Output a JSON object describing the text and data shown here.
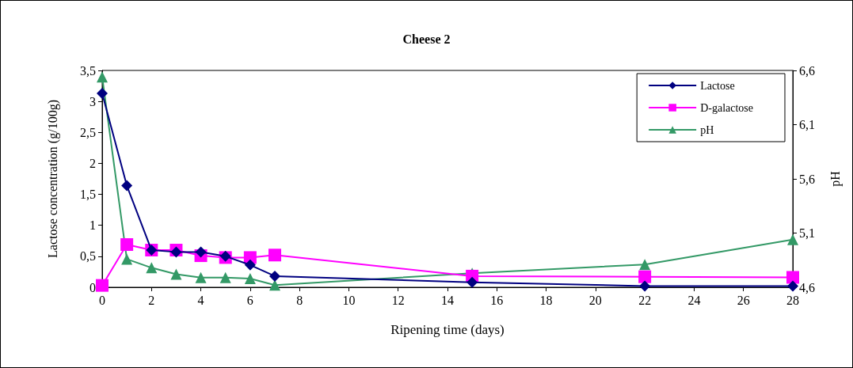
{
  "chart_data": {
    "type": "line",
    "title": "Cheese 2",
    "xlabel": "Ripening time (days)",
    "ylabel": "Lactose concentration (g/100g)",
    "y2label": "pH",
    "x": [
      0,
      1,
      2,
      3,
      4,
      5,
      6,
      7,
      15,
      22,
      28
    ],
    "xlim": [
      0,
      28
    ],
    "xticks": [
      0,
      2,
      4,
      6,
      8,
      10,
      12,
      14,
      16,
      18,
      20,
      22,
      24,
      26,
      28
    ],
    "ylim": [
      0,
      3.5
    ],
    "yticks": [
      {
        "value": 0,
        "label": "0"
      },
      {
        "value": 0.5,
        "label": "0,5"
      },
      {
        "value": 1,
        "label": "1"
      },
      {
        "value": 1.5,
        "label": "1,5"
      },
      {
        "value": 2,
        "label": "2"
      },
      {
        "value": 2.5,
        "label": "2,5"
      },
      {
        "value": 3,
        "label": "3"
      },
      {
        "value": 3.5,
        "label": "3,5"
      }
    ],
    "y2lim": [
      4.6,
      6.6
    ],
    "y2ticks": [
      {
        "value": 4.6,
        "label": "4,6"
      },
      {
        "value": 5.1,
        "label": "5,1"
      },
      {
        "value": 5.6,
        "label": "5,6"
      },
      {
        "value": 6.1,
        "label": "6,1"
      },
      {
        "value": 6.6,
        "label": "6,6"
      }
    ],
    "series": [
      {
        "name": "Lactose",
        "color": "#000080",
        "marker": "diamond",
        "values": [
          3.13,
          1.64,
          0.6,
          0.57,
          0.57,
          0.5,
          0.36,
          0.18,
          0.08,
          0.02,
          0.02
        ]
      },
      {
        "name": "D-galactose",
        "color": "#ff00ff",
        "marker": "square",
        "values": [
          0.03,
          0.69,
          0.6,
          0.6,
          0.51,
          0.48,
          0.48,
          0.52,
          0.18,
          0.17,
          0.16
        ]
      },
      {
        "name": "pH",
        "color": "#339966",
        "marker": "triangle",
        "axis": "y2",
        "values": [
          6.54,
          4.86,
          4.78,
          4.72,
          4.69,
          4.69,
          4.68,
          4.62,
          4.73,
          4.81,
          5.04
        ]
      }
    ],
    "grid": false,
    "legend": "top right"
  }
}
